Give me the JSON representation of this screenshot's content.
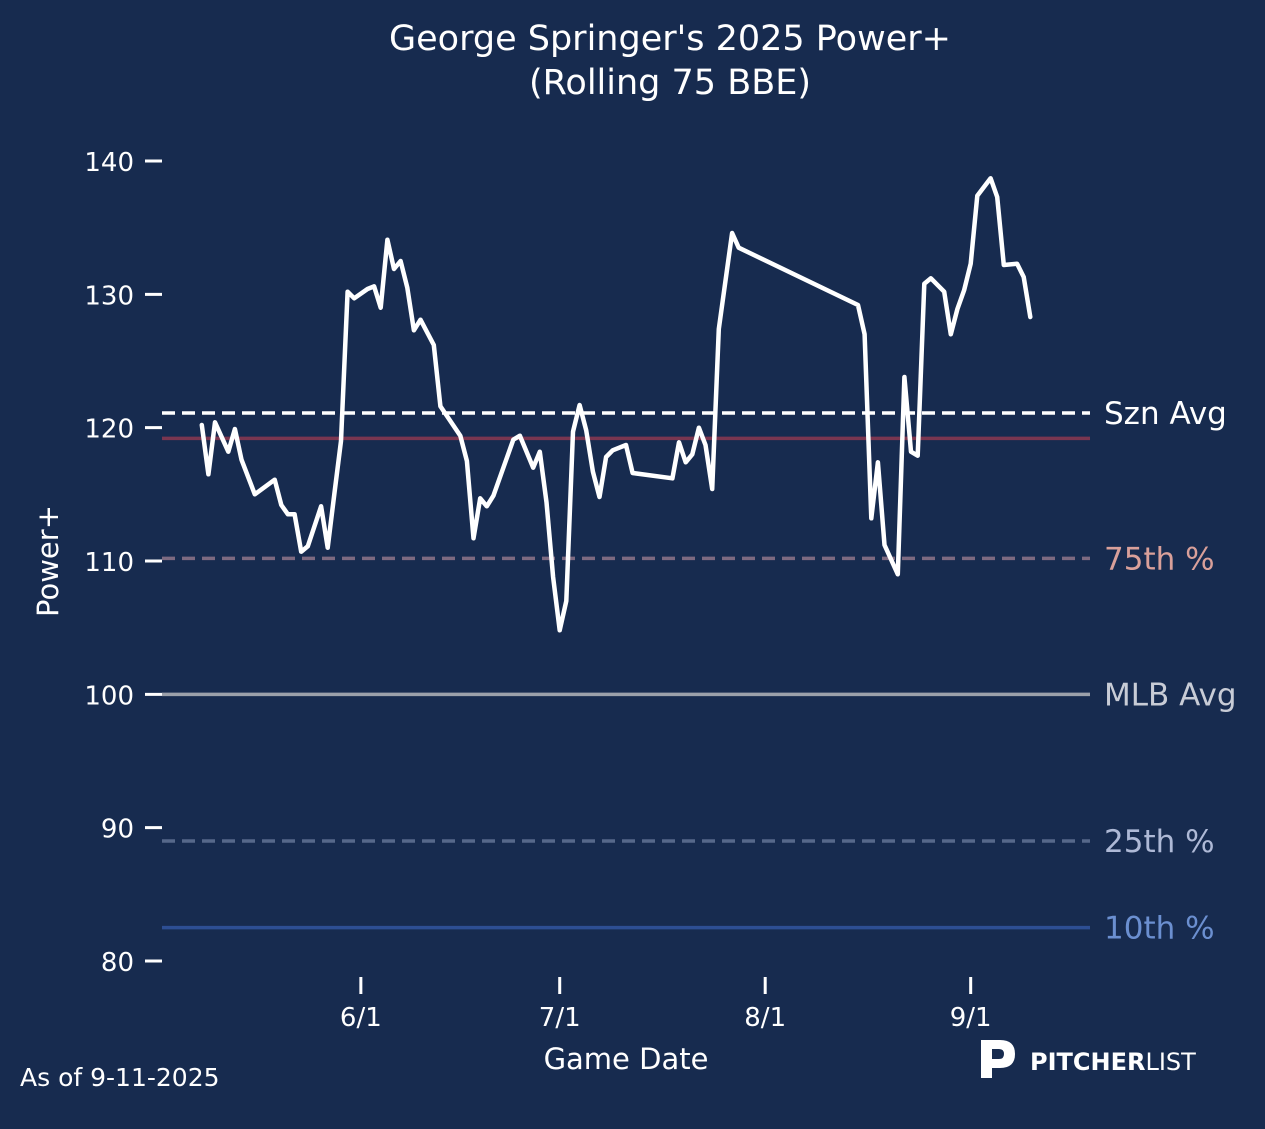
{
  "chart_data": {
    "type": "line",
    "title": "George Springer's 2025 Power+",
    "subtitle": "(Rolling 75 BBE)",
    "xlabel": "Game Date",
    "ylabel": "Power+",
    "ylim": [
      80,
      140
    ],
    "yticks": [
      80,
      90,
      100,
      110,
      120,
      130,
      140
    ],
    "xticks": [
      {
        "label": "6/1",
        "date": "2025-06-01"
      },
      {
        "label": "7/1",
        "date": "2025-07-01"
      },
      {
        "label": "8/1",
        "date": "2025-08-01"
      },
      {
        "label": "9/1",
        "date": "2025-09-01"
      }
    ],
    "xlim": [
      "2025-05-02",
      "2025-09-19"
    ],
    "grid": false,
    "series": [
      {
        "color": "#ffffff",
        "points": [
          [
            "2025-05-08",
            120.2
          ],
          [
            "2025-05-09",
            116.5
          ],
          [
            "2025-05-10",
            120.4
          ],
          [
            "2025-05-12",
            118.2
          ],
          [
            "2025-05-13",
            119.9
          ],
          [
            "2025-05-14",
            117.6
          ],
          [
            "2025-05-16",
            115.0
          ],
          [
            "2025-05-19",
            116.1
          ],
          [
            "2025-05-20",
            114.2
          ],
          [
            "2025-05-21",
            113.5
          ],
          [
            "2025-05-22",
            113.5
          ],
          [
            "2025-05-23",
            110.7
          ],
          [
            "2025-05-24",
            111.1
          ],
          [
            "2025-05-26",
            114.1
          ],
          [
            "2025-05-27",
            111.0
          ],
          [
            "2025-05-28",
            115.0
          ],
          [
            "2025-05-29",
            119.0
          ],
          [
            "2025-05-30",
            130.2
          ],
          [
            "2025-05-31",
            129.7
          ],
          [
            "2025-06-02",
            130.4
          ],
          [
            "2025-06-03",
            130.6
          ],
          [
            "2025-06-04",
            129.0
          ],
          [
            "2025-06-05",
            134.1
          ],
          [
            "2025-06-06",
            131.9
          ],
          [
            "2025-06-07",
            132.5
          ],
          [
            "2025-06-08",
            130.5
          ],
          [
            "2025-06-09",
            127.3
          ],
          [
            "2025-06-10",
            128.1
          ],
          [
            "2025-06-12",
            126.2
          ],
          [
            "2025-06-13",
            121.6
          ],
          [
            "2025-06-16",
            119.4
          ],
          [
            "2025-06-17",
            117.5
          ],
          [
            "2025-06-18",
            111.7
          ],
          [
            "2025-06-19",
            114.7
          ],
          [
            "2025-06-20",
            114.1
          ],
          [
            "2025-06-21",
            114.9
          ],
          [
            "2025-06-24",
            119.1
          ],
          [
            "2025-06-25",
            119.4
          ],
          [
            "2025-06-27",
            117.0
          ],
          [
            "2025-06-28",
            118.2
          ],
          [
            "2025-06-29",
            114.4
          ],
          [
            "2025-06-30",
            108.8
          ],
          [
            "2025-07-01",
            104.8
          ],
          [
            "2025-07-02",
            107.0
          ],
          [
            "2025-07-03",
            119.7
          ],
          [
            "2025-07-04",
            121.7
          ],
          [
            "2025-07-05",
            119.8
          ],
          [
            "2025-07-06",
            116.7
          ],
          [
            "2025-07-07",
            114.8
          ],
          [
            "2025-07-08",
            117.8
          ],
          [
            "2025-07-09",
            118.3
          ],
          [
            "2025-07-11",
            118.7
          ],
          [
            "2025-07-12",
            116.6
          ],
          [
            "2025-07-18",
            116.2
          ],
          [
            "2025-07-19",
            118.9
          ],
          [
            "2025-07-20",
            117.4
          ],
          [
            "2025-07-21",
            118.0
          ],
          [
            "2025-07-22",
            120.0
          ],
          [
            "2025-07-23",
            118.7
          ],
          [
            "2025-07-24",
            115.4
          ],
          [
            "2025-07-25",
            127.4
          ],
          [
            "2025-07-27",
            134.6
          ],
          [
            "2025-07-28",
            133.5
          ],
          [
            "2025-08-15",
            129.2
          ],
          [
            "2025-08-16",
            127.0
          ],
          [
            "2025-08-17",
            113.2
          ],
          [
            "2025-08-18",
            117.4
          ],
          [
            "2025-08-19",
            111.2
          ],
          [
            "2025-08-21",
            109.0
          ],
          [
            "2025-08-22",
            123.8
          ],
          [
            "2025-08-23",
            118.2
          ],
          [
            "2025-08-24",
            117.9
          ],
          [
            "2025-08-25",
            130.8
          ],
          [
            "2025-08-26",
            131.2
          ],
          [
            "2025-08-28",
            130.2
          ],
          [
            "2025-08-29",
            127.0
          ],
          [
            "2025-08-30",
            128.9
          ],
          [
            "2025-08-31",
            130.3
          ],
          [
            "2025-09-01",
            132.3
          ],
          [
            "2025-09-02",
            137.4
          ],
          [
            "2025-09-04",
            138.7
          ],
          [
            "2025-09-05",
            137.3
          ],
          [
            "2025-09-06",
            132.2
          ],
          [
            "2025-09-08",
            132.3
          ],
          [
            "2025-09-09",
            131.3
          ],
          [
            "2025-09-10",
            128.3
          ]
        ]
      }
    ],
    "reference_lines": [
      {
        "label": "Szn Avg",
        "value": 121.1,
        "color": "#ffffff",
        "label_color": "#ffffff",
        "dashed": true
      },
      {
        "value": 119.2,
        "color": "#7a3650",
        "dashed": false
      },
      {
        "label": "75th %",
        "value": 110.2,
        "color": "#7d6a81",
        "label_color": "#d9a09a",
        "dashed": true
      },
      {
        "label": "MLB Avg",
        "value": 100.0,
        "color": "#9ba0aa",
        "label_color": "#c8ccd6",
        "dashed": false
      },
      {
        "label": "25th %",
        "value": 89.0,
        "color": "#56688a",
        "label_color": "#aeb9d6",
        "dashed": true
      },
      {
        "label": "10th %",
        "value": 82.5,
        "color": "#2d4e93",
        "label_color": "#6b8fd0",
        "dashed": false
      }
    ]
  },
  "footer": {
    "as_of": "As of 9-11-2025",
    "logo_text_bold": "PITCHER",
    "logo_text_light": "LIST"
  },
  "colors": {
    "background": "#172b4f",
    "text": "#ffffff"
  }
}
